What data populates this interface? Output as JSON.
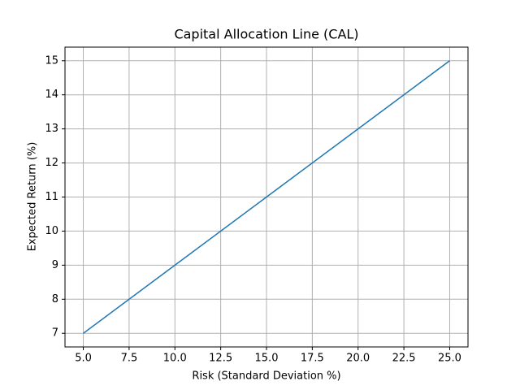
{
  "chart_data": {
    "type": "line",
    "title": "Capital Allocation Line (CAL)",
    "x_label": "Risk (Standard Deviation %)",
    "y_label": "Expected Return (%)",
    "x": [
      5,
      10,
      15,
      20,
      25
    ],
    "series": [
      {
        "name": "CAL",
        "color": "#1f77b4",
        "values": [
          7,
          9,
          11,
          13,
          15
        ]
      }
    ],
    "xlim": [
      4,
      26
    ],
    "xticks": [
      {
        "value": 5,
        "label": "5.0"
      },
      7.5,
      {
        "value": 10,
        "label": "10.0"
      },
      12.5,
      {
        "value": 15,
        "label": "15.0"
      },
      17.5,
      {
        "value": 20,
        "label": "20.0"
      },
      22.5,
      {
        "value": 25,
        "label": "25.0"
      }
    ],
    "ylim": [
      6.6,
      15.4
    ],
    "yticks": [
      7,
      8,
      9,
      10,
      11,
      12,
      13,
      14,
      15
    ],
    "grid": true,
    "legend": false
  }
}
